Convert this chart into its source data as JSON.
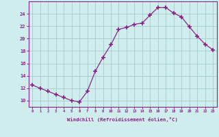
{
  "x": [
    0,
    1,
    2,
    3,
    4,
    5,
    6,
    7,
    8,
    9,
    10,
    11,
    12,
    13,
    14,
    15,
    16,
    17,
    18,
    19,
    20,
    21,
    22,
    23
  ],
  "y": [
    12.5,
    12.0,
    11.5,
    11.0,
    10.5,
    10.0,
    9.8,
    11.5,
    14.7,
    17.0,
    19.0,
    21.5,
    21.8,
    22.3,
    22.5,
    23.8,
    25.0,
    25.0,
    24.1,
    23.5,
    21.9,
    20.4,
    19.1,
    18.2
  ],
  "line_color": "#882288",
  "marker": "+",
  "marker_size": 4,
  "bg_color": "#d0eded",
  "grid_color": "#aacece",
  "xlabel": "Windchill (Refroidissement éolien,°C)",
  "ylim": [
    9,
    26
  ],
  "xlim": [
    -0.5,
    23.5
  ],
  "yticks": [
    10,
    12,
    14,
    16,
    18,
    20,
    22,
    24
  ],
  "xticks": [
    0,
    1,
    2,
    3,
    4,
    5,
    6,
    7,
    8,
    9,
    10,
    11,
    12,
    13,
    14,
    15,
    16,
    17,
    18,
    19,
    20,
    21,
    22,
    23
  ],
  "axis_color": "#882288",
  "tick_color": "#882288",
  "label_color": "#882288"
}
